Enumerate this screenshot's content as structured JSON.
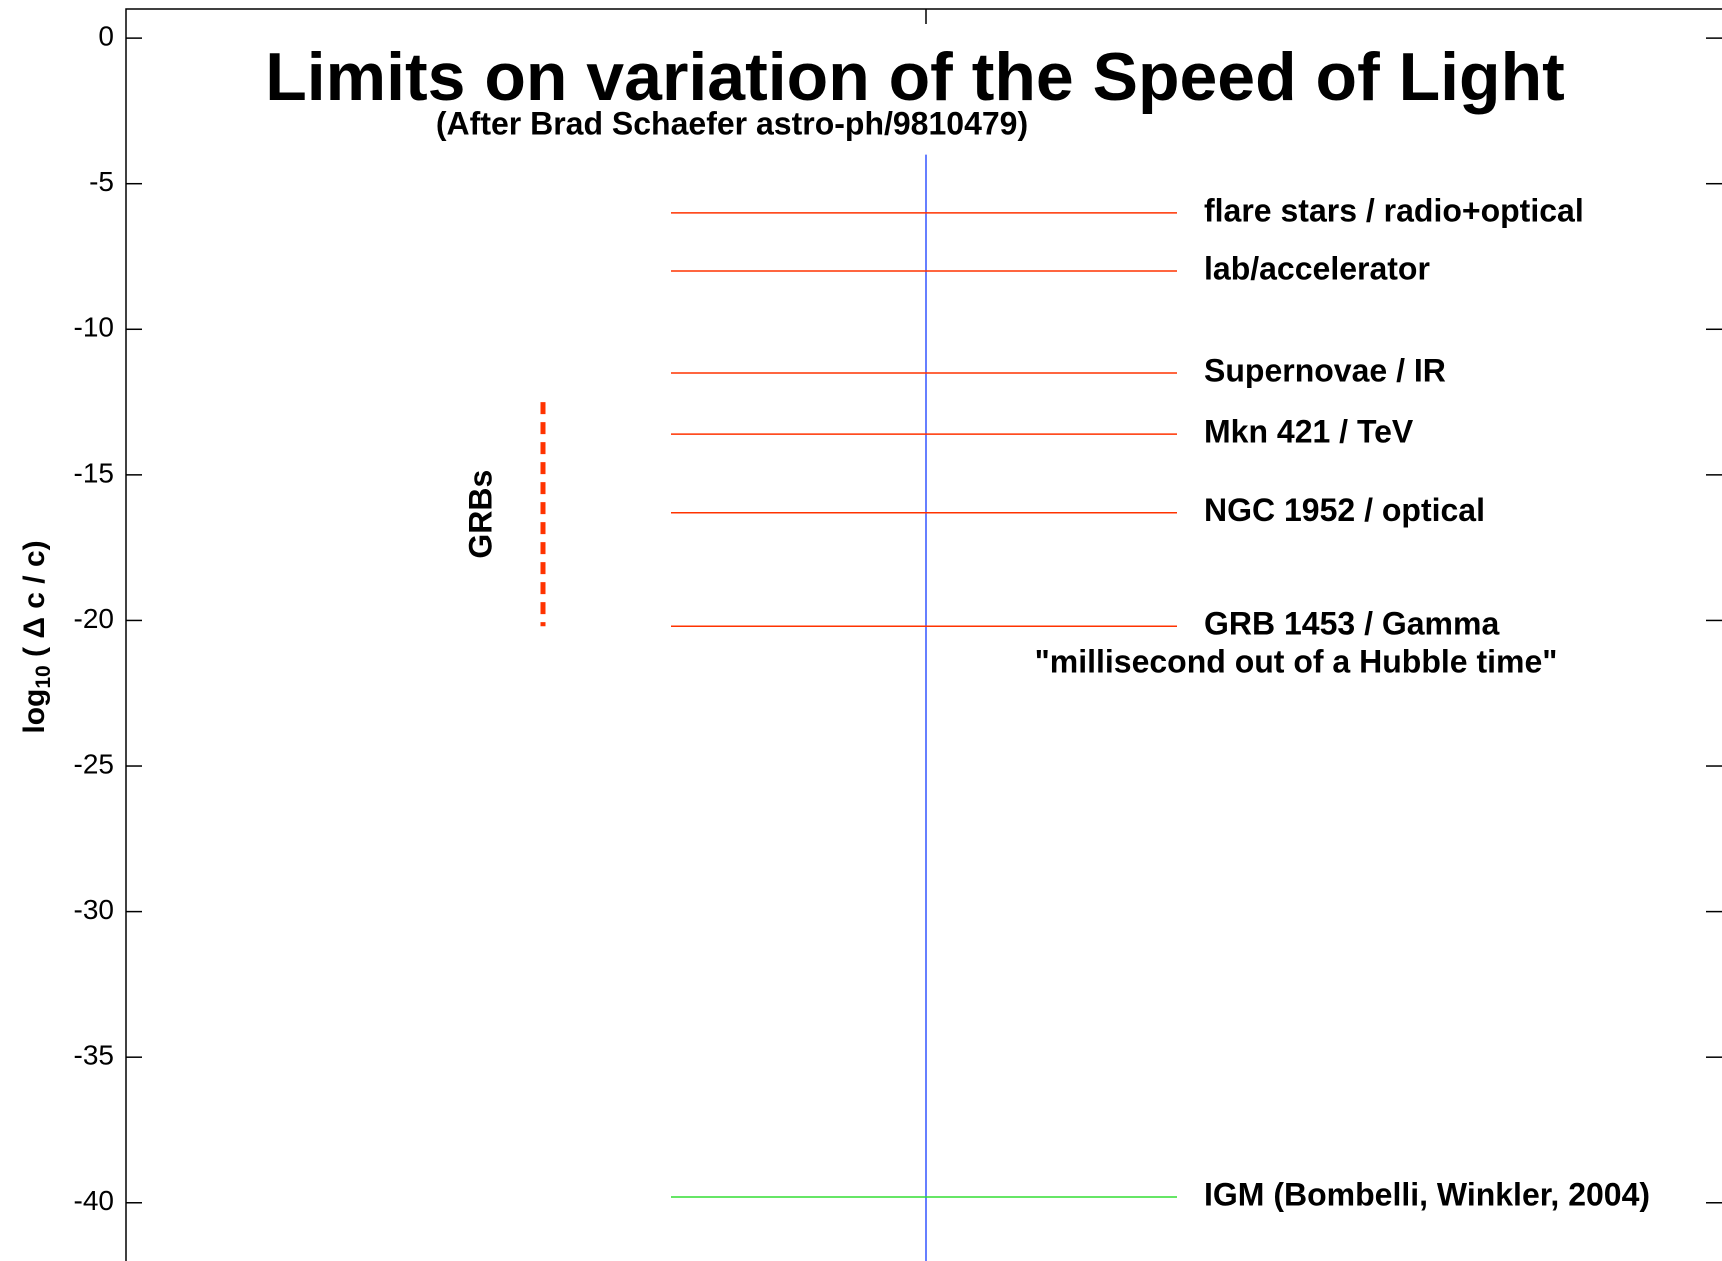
{
  "chart_data": {
    "type": "hline",
    "title": "Limits on variation of the Speed of Light",
    "subtitle": "(After Brad Schaefer astro-ph/9810479)",
    "ylabel": [
      "log",
      "10",
      " ( Δ c / c)"
    ],
    "ylim": [
      -42,
      1
    ],
    "yticks": [
      0,
      -5,
      -10,
      -15,
      -20,
      -25,
      -30,
      -35,
      -40
    ],
    "series": [
      {
        "name": "flare stars / radio+optical",
        "color": "#ff3300",
        "value": -6
      },
      {
        "name": "lab/accelerator",
        "color": "#ff3300",
        "value": -8
      },
      {
        "name": "Supernovae / IR",
        "color": "#ff3300",
        "value": -11.5
      },
      {
        "name": "Mkn 421 / TeV",
        "color": "#ff3300",
        "value": -13.6
      },
      {
        "name": "NGC 1952 / optical",
        "color": "#ff3300",
        "value": -16.3
      },
      {
        "name": "GRB 1453 / Gamma",
        "color": "#ff3300",
        "value": -20.2
      },
      {
        "name": "IGM (Bombelli, Winkler, 2004)",
        "color": "#33dd33",
        "value": -39.8
      }
    ],
    "annotation": "\"millisecond out of a Hubble time\"",
    "range_bar": {
      "name": "GRBs",
      "color": "#ff3300",
      "values": [
        -12.5,
        -20.2
      ]
    },
    "vline": {
      "color": "#3355ff",
      "top": -4
    }
  }
}
